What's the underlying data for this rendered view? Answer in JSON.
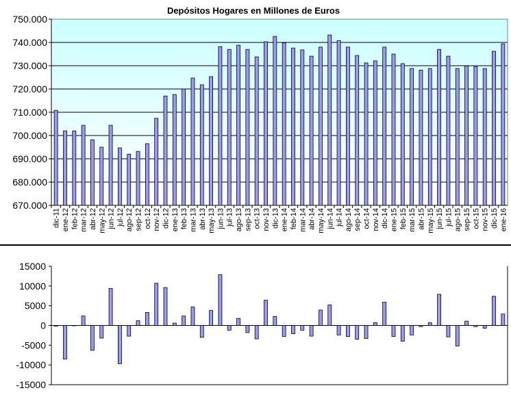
{
  "chart_data": [
    {
      "type": "bar",
      "title": "Depósitos Hogares en Millones de Euros",
      "xlabel": "",
      "ylabel": "",
      "ylim": [
        670000,
        750000
      ],
      "yticks": [
        "670.000",
        "680.000",
        "690.000",
        "700.000",
        "710.000",
        "720.000",
        "730.000",
        "740.000",
        "750.000"
      ],
      "grid": true,
      "categories": [
        "dic-11",
        "ene-12",
        "feb-12",
        "mar-12",
        "abr-12",
        "may-12",
        "jun-12",
        "jul-12",
        "ago-12",
        "sep-12",
        "oct-12",
        "nov-12",
        "dic-12",
        "ene-13",
        "feb-13",
        "mar-13",
        "abr-13",
        "may-13",
        "jun-13",
        "jul-13",
        "ago-13",
        "sep-13",
        "oct-13",
        "nov-13",
        "dic-13",
        "ene-14",
        "feb-14",
        "mar-14",
        "abr-14",
        "may-14",
        "jun-14",
        "jul-14",
        "ago-14",
        "sep-14",
        "oct-14",
        "nov-14",
        "dic-14",
        "ene-15",
        "feb-15",
        "mar-15",
        "abr-15",
        "may-15",
        "jun-15",
        "jul-15",
        "ago-15",
        "sep-15",
        "oct-15",
        "nov-15",
        "dic-15",
        "ene-16"
      ],
      "values": [
        710800,
        702000,
        702000,
        704400,
        698200,
        695000,
        704400,
        694700,
        692000,
        693200,
        696500,
        707400,
        717000,
        717600,
        720000,
        724700,
        721800,
        725300,
        738200,
        737000,
        738800,
        737000,
        733800,
        740300,
        742600,
        739800,
        737600,
        736800,
        734100,
        738000,
        743200,
        740800,
        738000,
        734400,
        731200,
        732100,
        738000,
        735000,
        730900,
        728800,
        728100,
        728800,
        737000,
        734100,
        728800,
        729900,
        729600,
        728800,
        736200,
        739400
      ],
      "colors": {
        "bar": "#9999ff",
        "plot_top": "#ccffff",
        "plot_bottom": "#ffffff"
      }
    },
    {
      "type": "bar",
      "title": "",
      "ylim": [
        -15000,
        15000
      ],
      "yticks": [
        "-15000",
        "-10000",
        "-5000",
        "0",
        "5000",
        "10000",
        "15000"
      ],
      "grid": false,
      "values": [
        -200,
        -8500,
        0,
        2400,
        -6300,
        -3200,
        9400,
        -9700,
        -2700,
        1200,
        3300,
        10700,
        9600,
        600,
        2400,
        4700,
        -3000,
        3800,
        12900,
        -1200,
        1800,
        -1800,
        -3400,
        6400,
        2300,
        -2800,
        -2100,
        -1200,
        -2700,
        3900,
        5200,
        -2400,
        -2800,
        -3500,
        -3300,
        700,
        5900,
        -2800,
        -4000,
        -2400,
        -300,
        700,
        7900,
        -2900,
        -5200,
        1100,
        -300,
        -700,
        7400,
        2900
      ],
      "colors": {
        "bar": "#9999ff"
      }
    }
  ]
}
